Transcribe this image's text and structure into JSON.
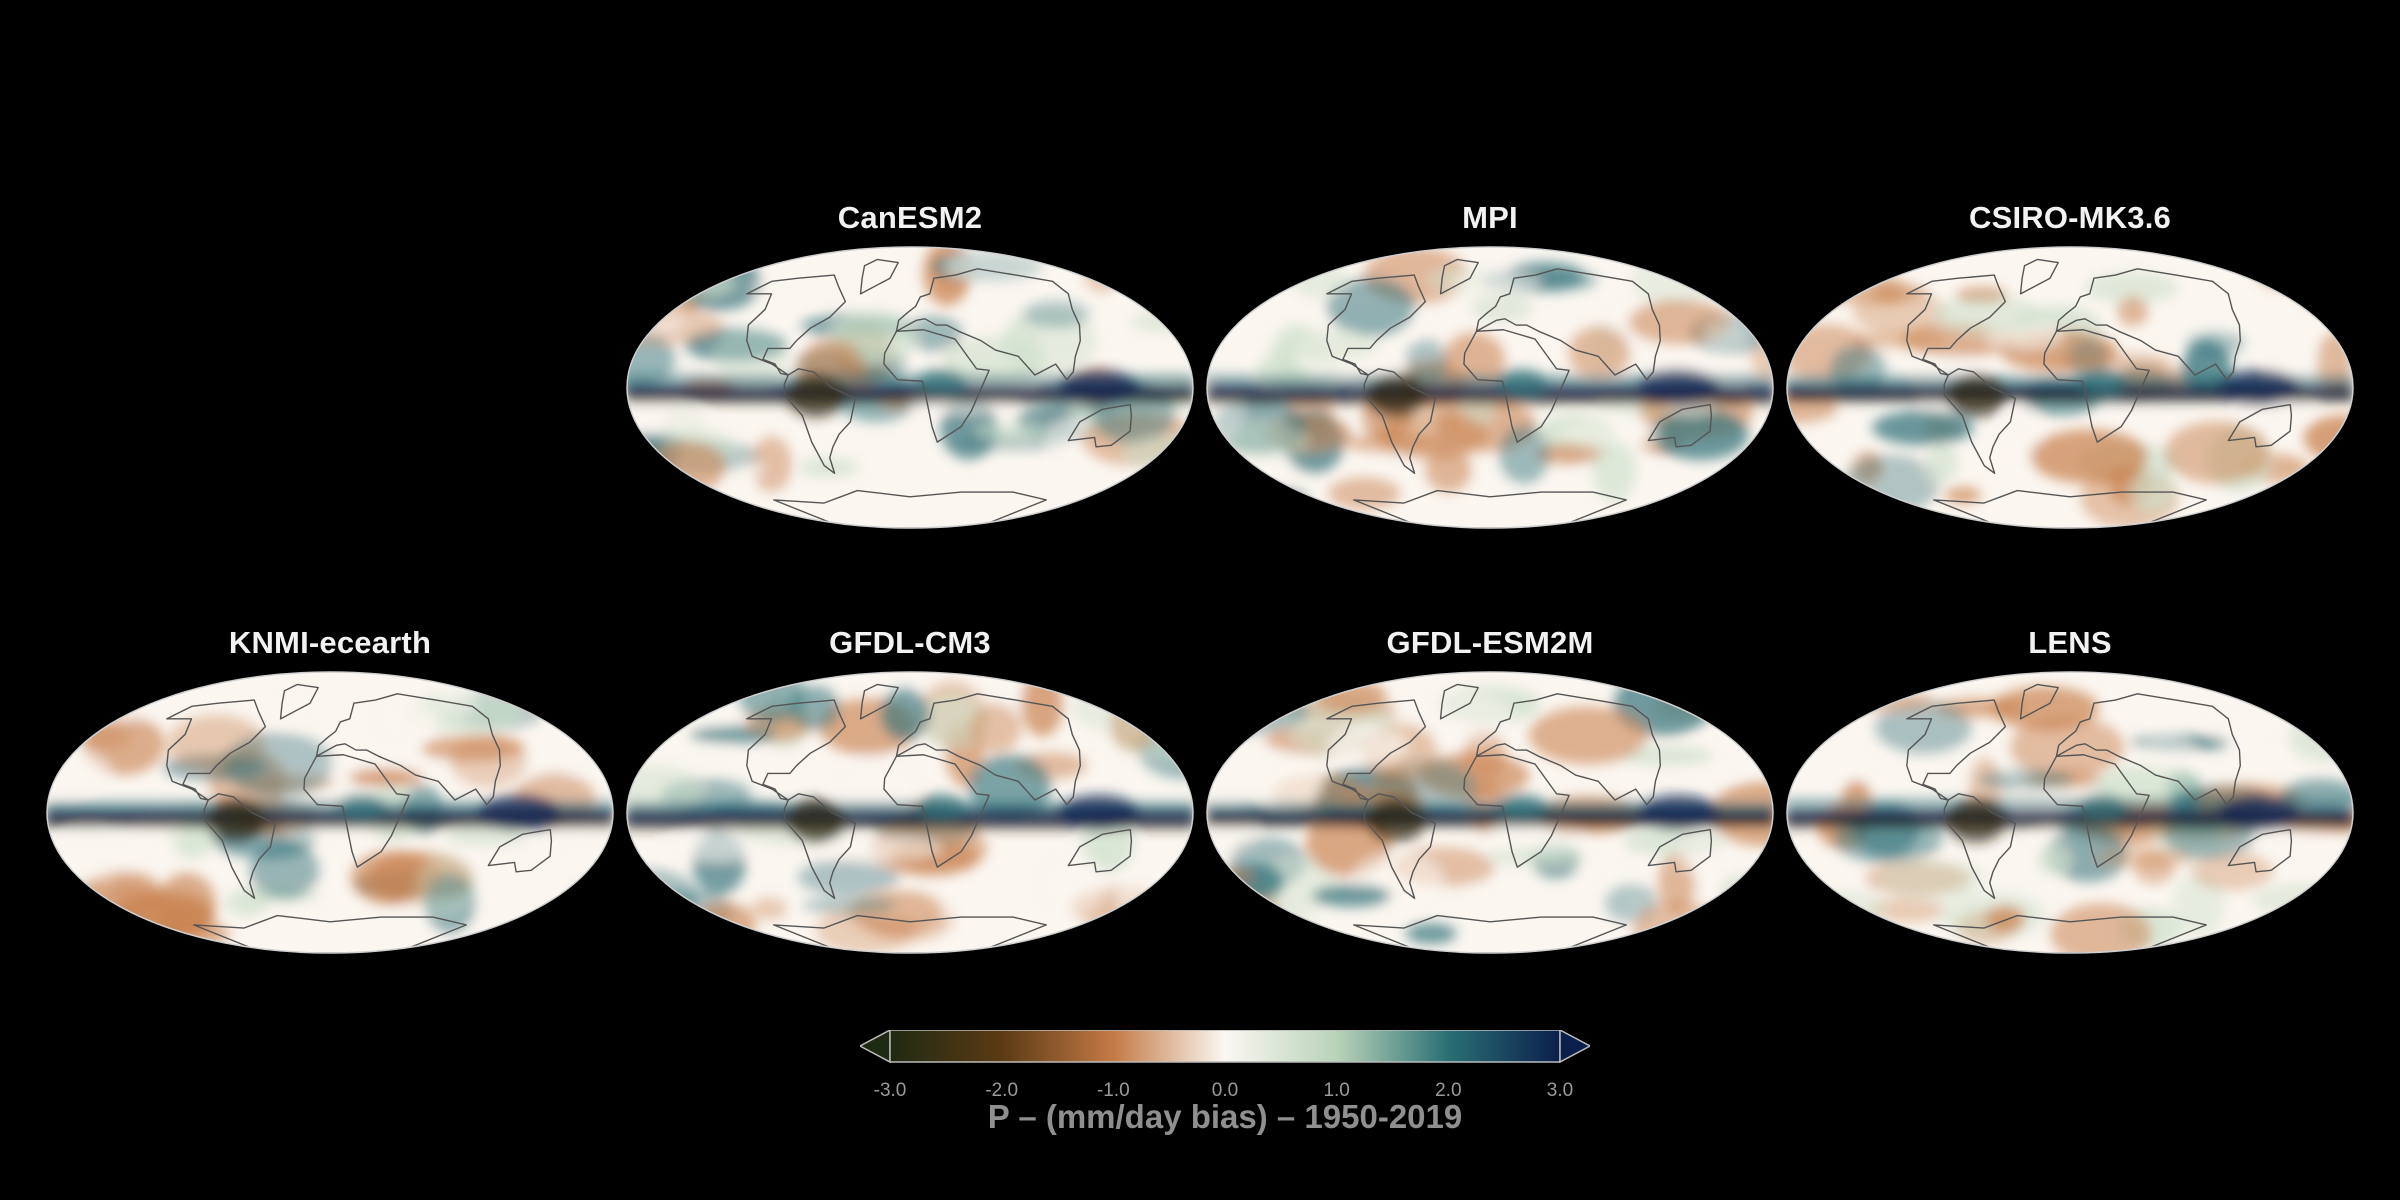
{
  "figure": {
    "colorbar": {
      "label": "P – (mm/day bias) – 1950-2019",
      "ticks": [
        "-3.0",
        "-2.0",
        "-1.0",
        "0.0",
        "1.0",
        "2.0",
        "3.0"
      ],
      "vmin": -3.0,
      "vmax": 3.0,
      "colormap_stops": [
        {
          "value": -3.0,
          "color": "#1f2a12"
        },
        {
          "value": -2.0,
          "color": "#5b3a14"
        },
        {
          "value": -1.0,
          "color": "#c47a45"
        },
        {
          "value": 0.0,
          "color": "#fbf7f2"
        },
        {
          "value": 1.0,
          "color": "#b9d3b9"
        },
        {
          "value": 2.0,
          "color": "#2a6f74"
        },
        {
          "value": 3.0,
          "color": "#0b1f4c"
        }
      ],
      "extend": "both"
    },
    "panels": [
      {
        "title": "CanESM2",
        "tropical_bias": "mixed"
      },
      {
        "title": "MPI",
        "tropical_bias": "strong-wet"
      },
      {
        "title": "CSIRO-MK3.6",
        "tropical_bias": "strong-wet"
      },
      {
        "title": "KNMI-ecearth",
        "tropical_bias": "moderate"
      },
      {
        "title": "GFDL-CM3",
        "tropical_bias": "strong-wet"
      },
      {
        "title": "GFDL-ESM2M",
        "tropical_bias": "strong-wet"
      },
      {
        "title": "LENS",
        "tropical_bias": "moderate"
      }
    ]
  },
  "colors": {
    "background": "#000000",
    "coastline": "#555555",
    "dry_strong": "#2b2410",
    "dry": "#c98250",
    "neutral": "#fbf6f0",
    "wet_light": "#cfe0cc",
    "wet": "#2e6f78",
    "wet_strong": "#0d2150"
  }
}
